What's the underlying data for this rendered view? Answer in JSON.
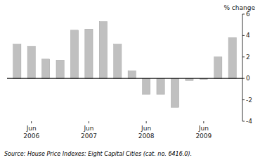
{
  "chart_data": {
    "type": "bar",
    "y_label": "% change",
    "source": "Source: House Price Indexes: Eight Capital Cities (cat.  no.  6416.0).",
    "categories": [
      null,
      "Jun\n2006",
      null,
      null,
      null,
      "Jun\n2007",
      null,
      null,
      null,
      "Jun\n2008",
      null,
      null,
      null,
      "Jun\n2009",
      null,
      null
    ],
    "values": [
      3.2,
      3.0,
      1.8,
      1.7,
      4.5,
      4.6,
      5.3,
      3.2,
      0.7,
      -1.5,
      -1.5,
      -2.7,
      -0.2,
      -0.1,
      2.0,
      3.8
    ],
    "color": "#c0c0c0",
    "ylim": [
      -4,
      6
    ],
    "yticks": [
      -4,
      -2,
      0,
      2,
      4,
      6
    ],
    "grid": false
  }
}
